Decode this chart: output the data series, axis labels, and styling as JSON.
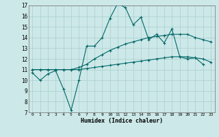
{
  "xlabel": "Humidex (Indice chaleur)",
  "background_color": "#cce8e8",
  "grid_color": "#aacece",
  "line_color": "#006666",
  "x_values": [
    0,
    1,
    2,
    3,
    4,
    5,
    6,
    7,
    8,
    9,
    10,
    11,
    12,
    13,
    14,
    15,
    16,
    17,
    18,
    19,
    20,
    21,
    22,
    23
  ],
  "line1_y": [
    10.7,
    10.0,
    10.6,
    10.9,
    9.2,
    7.2,
    10.0,
    13.2,
    13.2,
    14.0,
    15.8,
    17.2,
    16.8,
    15.2,
    15.9,
    13.8,
    14.3,
    13.5,
    14.8,
    12.2,
    12.0,
    12.1,
    11.5,
    null
  ],
  "line2_y": [
    11.0,
    11.0,
    11.0,
    11.0,
    11.0,
    11.0,
    11.2,
    11.5,
    12.0,
    12.4,
    12.8,
    13.1,
    13.4,
    13.6,
    13.8,
    14.0,
    14.1,
    14.2,
    14.3,
    14.3,
    14.3,
    14.0,
    13.8,
    13.6
  ],
  "line3_y": [
    11.0,
    11.0,
    11.0,
    11.0,
    11.0,
    11.0,
    11.0,
    11.1,
    11.2,
    11.3,
    11.4,
    11.5,
    11.6,
    11.7,
    11.8,
    11.9,
    12.0,
    12.1,
    12.2,
    12.2,
    12.2,
    12.1,
    12.0,
    11.7
  ],
  "ylim": [
    7,
    17
  ],
  "xlim": [
    -0.5,
    23.5
  ],
  "yticks": [
    7,
    8,
    9,
    10,
    11,
    12,
    13,
    14,
    15,
    16,
    17
  ],
  "xticks": [
    0,
    1,
    2,
    3,
    4,
    5,
    6,
    7,
    8,
    9,
    10,
    11,
    12,
    13,
    14,
    15,
    16,
    17,
    18,
    19,
    20,
    21,
    22,
    23
  ]
}
